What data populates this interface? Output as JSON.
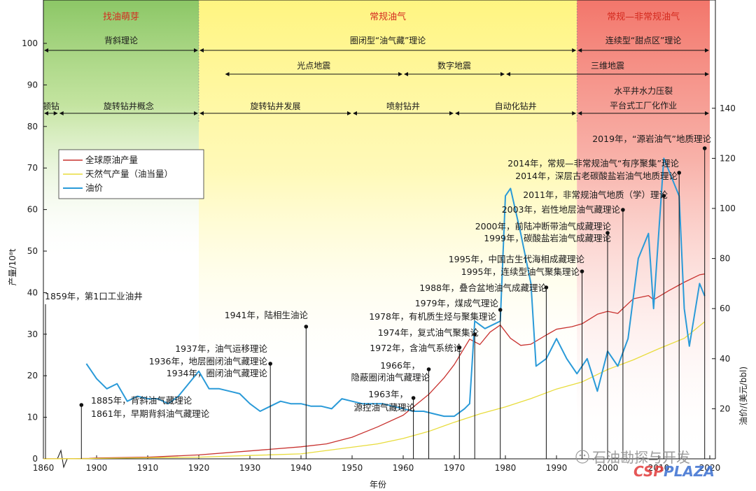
{
  "eras": [
    {
      "title": "找油萌芽",
      "from": 1860,
      "to": 1920,
      "color": "#9fd27a"
    },
    {
      "title": "常规油气",
      "from": 1920,
      "to": 1994,
      "color": "#fff59a"
    },
    {
      "title": "常规—非常规油气",
      "from": 1994,
      "to": 2020,
      "color": "#f4948a"
    }
  ],
  "theory_rows": [
    {
      "text": "背斜理论",
      "from": 1860,
      "to": 1920
    },
    {
      "text": "圈闭型“油气藏”理论",
      "from": 1920,
      "to": 1994
    },
    {
      "text": "连续型“甜点区”理论",
      "from": 1994,
      "to": 2020
    }
  ],
  "seismic_rows": [
    {
      "text": "光点地震",
      "from": 1925,
      "to": 1960
    },
    {
      "text": "数字地震",
      "from": 1960,
      "to": 1980
    },
    {
      "text": "三维地震",
      "from": 1980,
      "to": 2020
    }
  ],
  "drilling_rows": [
    {
      "text": "顿钻",
      "from": 1860,
      "to": 1870
    },
    {
      "text": "旋转钻井概念",
      "from": 1870,
      "to": 1920
    },
    {
      "text": "旋转钻井发展",
      "from": 1920,
      "to": 1950
    },
    {
      "text": "喷射钻井",
      "from": 1950,
      "to": 1970
    },
    {
      "text": "自动化钻井",
      "from": 1970,
      "to": 1994
    },
    {
      "text": "水平井水力压裂",
      "from": 1994,
      "to": 2020,
      "line2": "平台式工厂化作业"
    }
  ],
  "legend": {
    "oil": "全球原油产量",
    "gas": "天然气产量（油当量）",
    "price": "油价"
  },
  "colors": {
    "oil": "#c8322f",
    "gas": "#e8dc3c",
    "price": "#2a9ad8",
    "pin": "#111111"
  },
  "annotations": [
    {
      "year": 1859,
      "text": "1859年，第1口工业油井"
    },
    {
      "year": 1885,
      "text": "1885年，背斜油气藏理论"
    },
    {
      "year": 1885,
      "text": "1861年，早期背斜油气藏理论"
    },
    {
      "year": 1934,
      "text": "1937年，油气运移理论"
    },
    {
      "year": 1934,
      "text": "1936年，地层圈闭油气藏理论"
    },
    {
      "year": 1934,
      "text": "1934年，圈闭油气藏理论"
    },
    {
      "year": 1941,
      "text": "1941年，陆相生油论"
    },
    {
      "year": 1962,
      "text": "1963年，"
    },
    {
      "year": 1962,
      "text": "源控油气藏理论"
    },
    {
      "year": 1965,
      "text": "1966年，"
    },
    {
      "year": 1965,
      "text": "隐蔽圈闭油气藏理论"
    },
    {
      "year": 1971,
      "text": "1972年，含油气系统论"
    },
    {
      "year": 1974,
      "text": "1974年，复式油气聚集论"
    },
    {
      "year": 1979,
      "text": "1978年，有机质生烃与聚集理论"
    },
    {
      "year": 1979,
      "text": "1979年，煤成气理论"
    },
    {
      "year": 1988,
      "text": "1988年，叠合盆地油气成藏理论"
    },
    {
      "year": 1995,
      "text": "1995年，连续型油气聚集理论"
    },
    {
      "year": 1995,
      "text": "1995年，中国古生代海相成藏理论"
    },
    {
      "year": 2000,
      "text": "1999年，碳酸盐岩油气成藏理论"
    },
    {
      "year": 2000,
      "text": "2000年，前陆冲断带油气成藏理论"
    },
    {
      "year": 2003,
      "text": "2003年，岩性地层油气藏理论"
    },
    {
      "year": 2011,
      "text": "2011年，非常规油气地质（学）理论"
    },
    {
      "year": 2014,
      "text": "2014年，深层古老碳酸盐岩油气地质理论"
    },
    {
      "year": 2014,
      "text": "2014年，常规—非常规油气“有序聚集”理论"
    },
    {
      "year": 2019,
      "text": "2019年，“源岩油气”地质理论"
    }
  ],
  "chart_data": {
    "type": "line",
    "xlabel": "年份",
    "ylabel": "产量/10⁸t",
    "y2label": "油价/(美元/bbl)",
    "xlim": [
      1860,
      2020
    ],
    "ylim": [
      0,
      100
    ],
    "y2lim": [
      0,
      140
    ],
    "xticks": [
      1860,
      1900,
      1910,
      1920,
      1930,
      1940,
      1950,
      1960,
      1970,
      1980,
      1990,
      2000,
      2010,
      2020
    ],
    "yticks": [
      0,
      10,
      20,
      30,
      40,
      50,
      60,
      70,
      80,
      90,
      100
    ],
    "y2ticks": [
      20,
      40,
      60,
      80,
      100,
      120,
      140
    ],
    "series": [
      {
        "name": "全球原油产量",
        "axis": "left",
        "key": "oil",
        "x": [
          1860,
          1870,
          1880,
          1890,
          1900,
          1910,
          1920,
          1930,
          1940,
          1945,
          1950,
          1955,
          1960,
          1965,
          1968,
          1970,
          1973,
          1975,
          1977,
          1979,
          1981,
          1983,
          1985,
          1988,
          1990,
          1993,
          1995,
          1998,
          2000,
          2002,
          2005,
          2008,
          2009,
          2012,
          2015,
          2018,
          2019
        ],
        "y": [
          0.01,
          0.01,
          0.04,
          0.1,
          0.2,
          0.4,
          0.95,
          1.9,
          2.9,
          3.6,
          5.2,
          7.7,
          10.5,
          15.5,
          19.5,
          22.7,
          28.8,
          27.5,
          30.5,
          32.2,
          29.0,
          27.3,
          27.6,
          29.8,
          31.2,
          31.8,
          32.5,
          34.8,
          35.5,
          35.0,
          38.5,
          39.3,
          38.3,
          40.5,
          42.5,
          44.3,
          44.5
        ]
      },
      {
        "name": "天然气产量（油当量）",
        "axis": "left",
        "key": "gas",
        "x": [
          1860,
          1890,
          1900,
          1920,
          1930,
          1940,
          1950,
          1955,
          1960,
          1965,
          1970,
          1975,
          1980,
          1985,
          1990,
          1995,
          2000,
          2005,
          2010,
          2015,
          2019
        ],
        "y": [
          0,
          0.05,
          0.1,
          0.4,
          0.8,
          1.2,
          2.8,
          3.6,
          4.9,
          6.6,
          8.8,
          10.8,
          12.5,
          14.5,
          16.8,
          18.5,
          21.5,
          23.8,
          26.5,
          29.0,
          33.0
        ],
        "label_note": ""
      },
      {
        "name": "油价",
        "axis": "right",
        "key": "price",
        "x": [
          1898,
          1900,
          1902,
          1904,
          1906,
          1908,
          1910,
          1912,
          1914,
          1916,
          1918,
          1920,
          1922,
          1924,
          1926,
          1928,
          1930,
          1932,
          1934,
          1936,
          1938,
          1940,
          1942,
          1944,
          1946,
          1948,
          1950,
          1952,
          1954,
          1956,
          1958,
          1960,
          1962,
          1964,
          1966,
          1968,
          1970,
          1972,
          1973,
          1974,
          1976,
          1978,
          1979,
          1980,
          1981,
          1983,
          1985,
          1986,
          1988,
          1990,
          1992,
          1994,
          1996,
          1998,
          2000,
          2002,
          2004,
          2006,
          2008,
          2009,
          2011,
          2013,
          2014,
          2015,
          2016,
          2018,
          2019
        ],
        "y": [
          38,
          32,
          28,
          30,
          23,
          25,
          24,
          24,
          22,
          25,
          30,
          35,
          28,
          28,
          27,
          26,
          22,
          19,
          21,
          23,
          22,
          22,
          21,
          21,
          20,
          24,
          23,
          22,
          22,
          22,
          21,
          20,
          19,
          19,
          18,
          17,
          17,
          20,
          22,
          55,
          52,
          54,
          55,
          105,
          108,
          90,
          70,
          37,
          40,
          48,
          40,
          34,
          40,
          27,
          43,
          37,
          48,
          80,
          90,
          60,
          120,
          110,
          105,
          60,
          45,
          70,
          65
        ]
      }
    ]
  },
  "watermark": {
    "text": "石油勘探与开发",
    "site": "CSPPLAZA",
    "site_a": "CSP",
    "site_b": "PLAZA"
  }
}
